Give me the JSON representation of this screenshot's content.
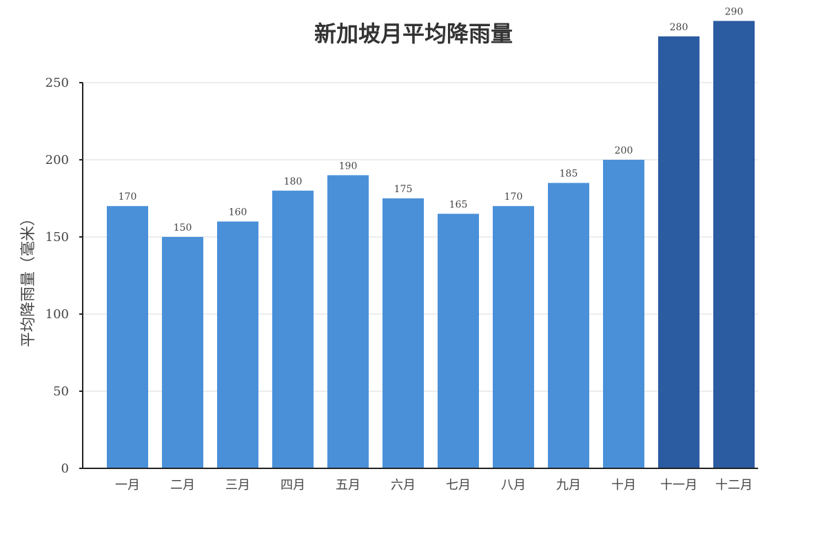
{
  "chart_data": {
    "type": "bar",
    "title": "新加坡月平均降雨量",
    "xlabel": "",
    "ylabel": "平均降雨量（毫米）",
    "ylim": [
      0,
      280
    ],
    "yticks": [
      0,
      50,
      100,
      150,
      200,
      250
    ],
    "grid": true,
    "categories": [
      "一月",
      "二月",
      "三月",
      "四月",
      "五月",
      "六月",
      "七月",
      "八月",
      "九月",
      "十月",
      "十一月",
      "十二月"
    ],
    "values": [
      170,
      150,
      160,
      180,
      190,
      175,
      165,
      170,
      185,
      200,
      280,
      290
    ],
    "highlight": [
      false,
      false,
      false,
      false,
      false,
      false,
      false,
      false,
      false,
      false,
      true,
      true
    ],
    "colors": {
      "bar": "#4a90d9",
      "bar_highlight": "#2b5ba0",
      "grid": "#e6e6e6",
      "axis": "#222222"
    }
  }
}
